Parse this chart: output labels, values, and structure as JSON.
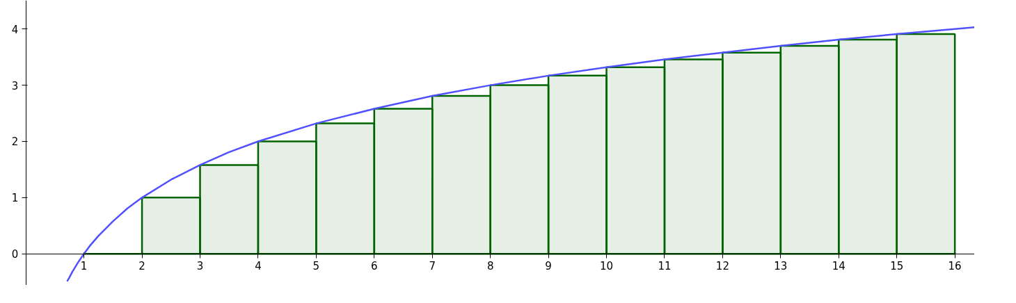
{
  "chart_data": {
    "type": "histogram",
    "series": [
      {
        "bins": [
          1,
          2,
          3,
          4,
          5,
          6,
          7,
          8,
          9,
          10,
          11,
          12,
          13,
          14,
          15,
          16
        ],
        "values": [
          0,
          1,
          1.58,
          2,
          2.32,
          2.58,
          2.81,
          3,
          3.17,
          3.32,
          3.46,
          3.58,
          3.7,
          3.81,
          3.91
        ],
        "color": "#006400"
      },
      {
        "type": "line",
        "x": [
          0.71,
          0.75,
          0.8,
          0.9,
          1,
          1.1,
          1.25,
          1.5,
          1.75,
          2,
          2.5,
          3,
          3.5,
          4,
          5,
          6,
          7,
          8,
          9,
          10,
          11,
          12,
          13,
          14,
          15,
          16,
          16.34
        ],
        "values": [
          -0.49,
          -0.42,
          -0.32,
          -0.15,
          0,
          0.14,
          0.32,
          0.58,
          0.81,
          1,
          1.32,
          1.58,
          1.81,
          2,
          2.32,
          2.58,
          2.81,
          3,
          3.17,
          3.32,
          3.46,
          3.58,
          3.7,
          3.81,
          3.91,
          4,
          4.03
        ],
        "color": "#5050ff"
      }
    ],
    "xlim": [
      -0.44,
      16.34
    ],
    "ylim": [
      -0.56,
      4.51
    ],
    "xticks": [
      1,
      2,
      3,
      4,
      5,
      6,
      7,
      8,
      9,
      10,
      11,
      12,
      13,
      14,
      15,
      16
    ],
    "yticks": [
      0,
      1,
      2,
      3,
      4
    ],
    "grid": false
  }
}
